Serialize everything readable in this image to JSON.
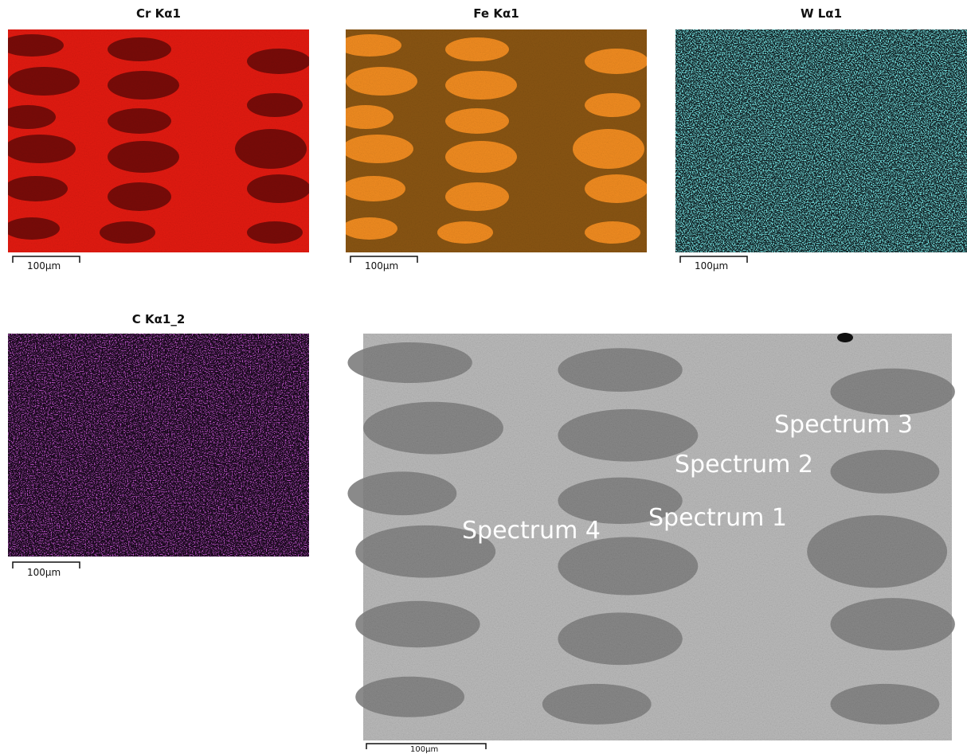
{
  "maps": [
    {
      "title": "Cr Kα1",
      "scale": "100μm"
    },
    {
      "title": "Fe Kα1",
      "scale": "100μm"
    },
    {
      "title": "W Lα1",
      "scale": "100μm"
    },
    {
      "title": "C Kα1_2",
      "scale": "100μm"
    }
  ],
  "electron_image": {
    "scale": "100μm",
    "spectra": [
      "Spectrum 1",
      "Spectrum 2",
      "Spectrum 3",
      "Spectrum 4"
    ]
  }
}
